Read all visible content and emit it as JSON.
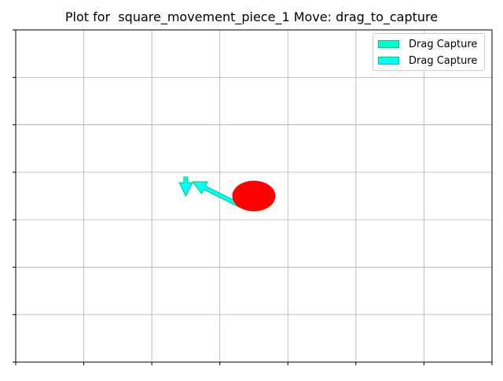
{
  "title": "Plot for  square_movement_piece_1 Move: drag_to_capture",
  "colors": {
    "background": "#ffffff",
    "grid": "#b0b0b0",
    "axis": "#000000",
    "piece": "#ff0000",
    "arrow_fill_primary": "#00ffff",
    "arrow_fill_secondary": "#00ffff",
    "arrow_edge": "#00cc66",
    "legend_swatch_1": "#00ffcc",
    "legend_swatch_2": "#00ffff"
  },
  "legend": {
    "placement": "top-right",
    "items": [
      {
        "label": "Drag Capture",
        "color": "#00ffcc"
      },
      {
        "label": "Drag Capture",
        "color": "#00ffff"
      }
    ]
  },
  "board": {
    "columns": 7,
    "rows": 7,
    "grid": true,
    "tick_labels_shown": false
  },
  "piece": {
    "name": "square_movement_piece_1",
    "col": 3.5,
    "row": 3.5,
    "color": "#ff0000"
  },
  "arrows": [
    {
      "name": "Drag Capture",
      "from": [
        3.3,
        3.3
      ],
      "to": [
        2.6,
        3.8
      ]
    },
    {
      "name": "Drag Capture",
      "from": [
        2.5,
        3.9
      ],
      "to": [
        2.5,
        3.5
      ]
    }
  ]
}
